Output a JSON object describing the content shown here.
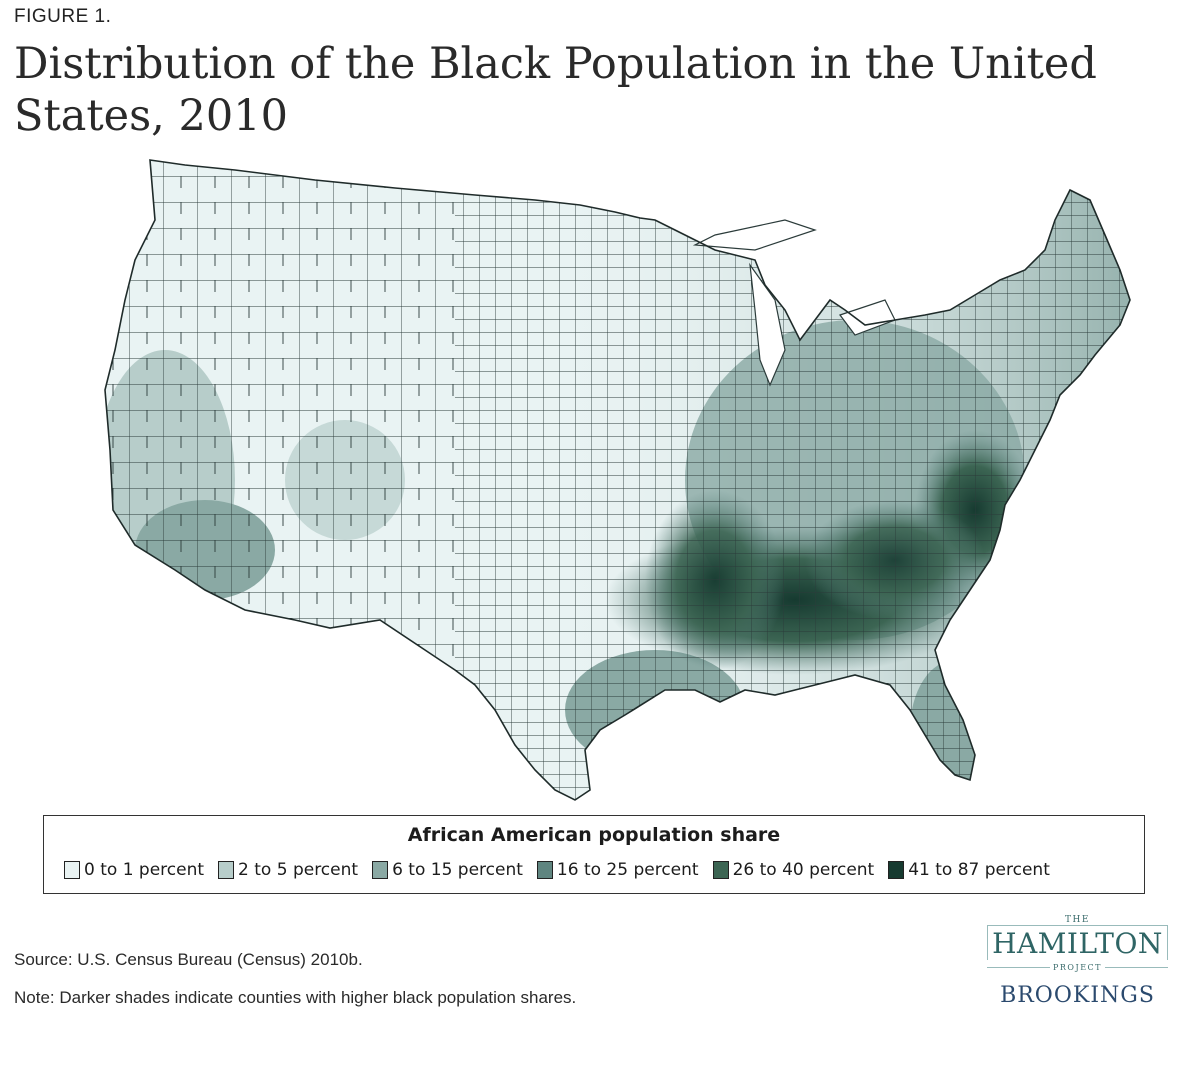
{
  "figure_label": "FIGURE 1.",
  "title": "Distribution of the Black Population in the United States, 2010",
  "legend": {
    "title": "African American population share",
    "items": [
      {
        "label": "0 to 1 percent",
        "color": "#e9f3f3"
      },
      {
        "label": "2 to 5 percent",
        "color": "#b7cdca"
      },
      {
        "label": "6 to 15 percent",
        "color": "#8aa9a4"
      },
      {
        "label": "16 to 25 percent",
        "color": "#5f8580"
      },
      {
        "label": "26 to 40 percent",
        "color": "#3c6553"
      },
      {
        "label": "41 to 87 percent",
        "color": "#163a30"
      }
    ]
  },
  "source": "Source: U.S. Census Bureau (Census) 2010b.",
  "note": "Note: Darker shades indicate counties with higher black population shares.",
  "logo": {
    "the": "THE",
    "hamilton": "HAMILTON",
    "project": "PROJECT",
    "brookings": "BROOKINGS"
  }
}
